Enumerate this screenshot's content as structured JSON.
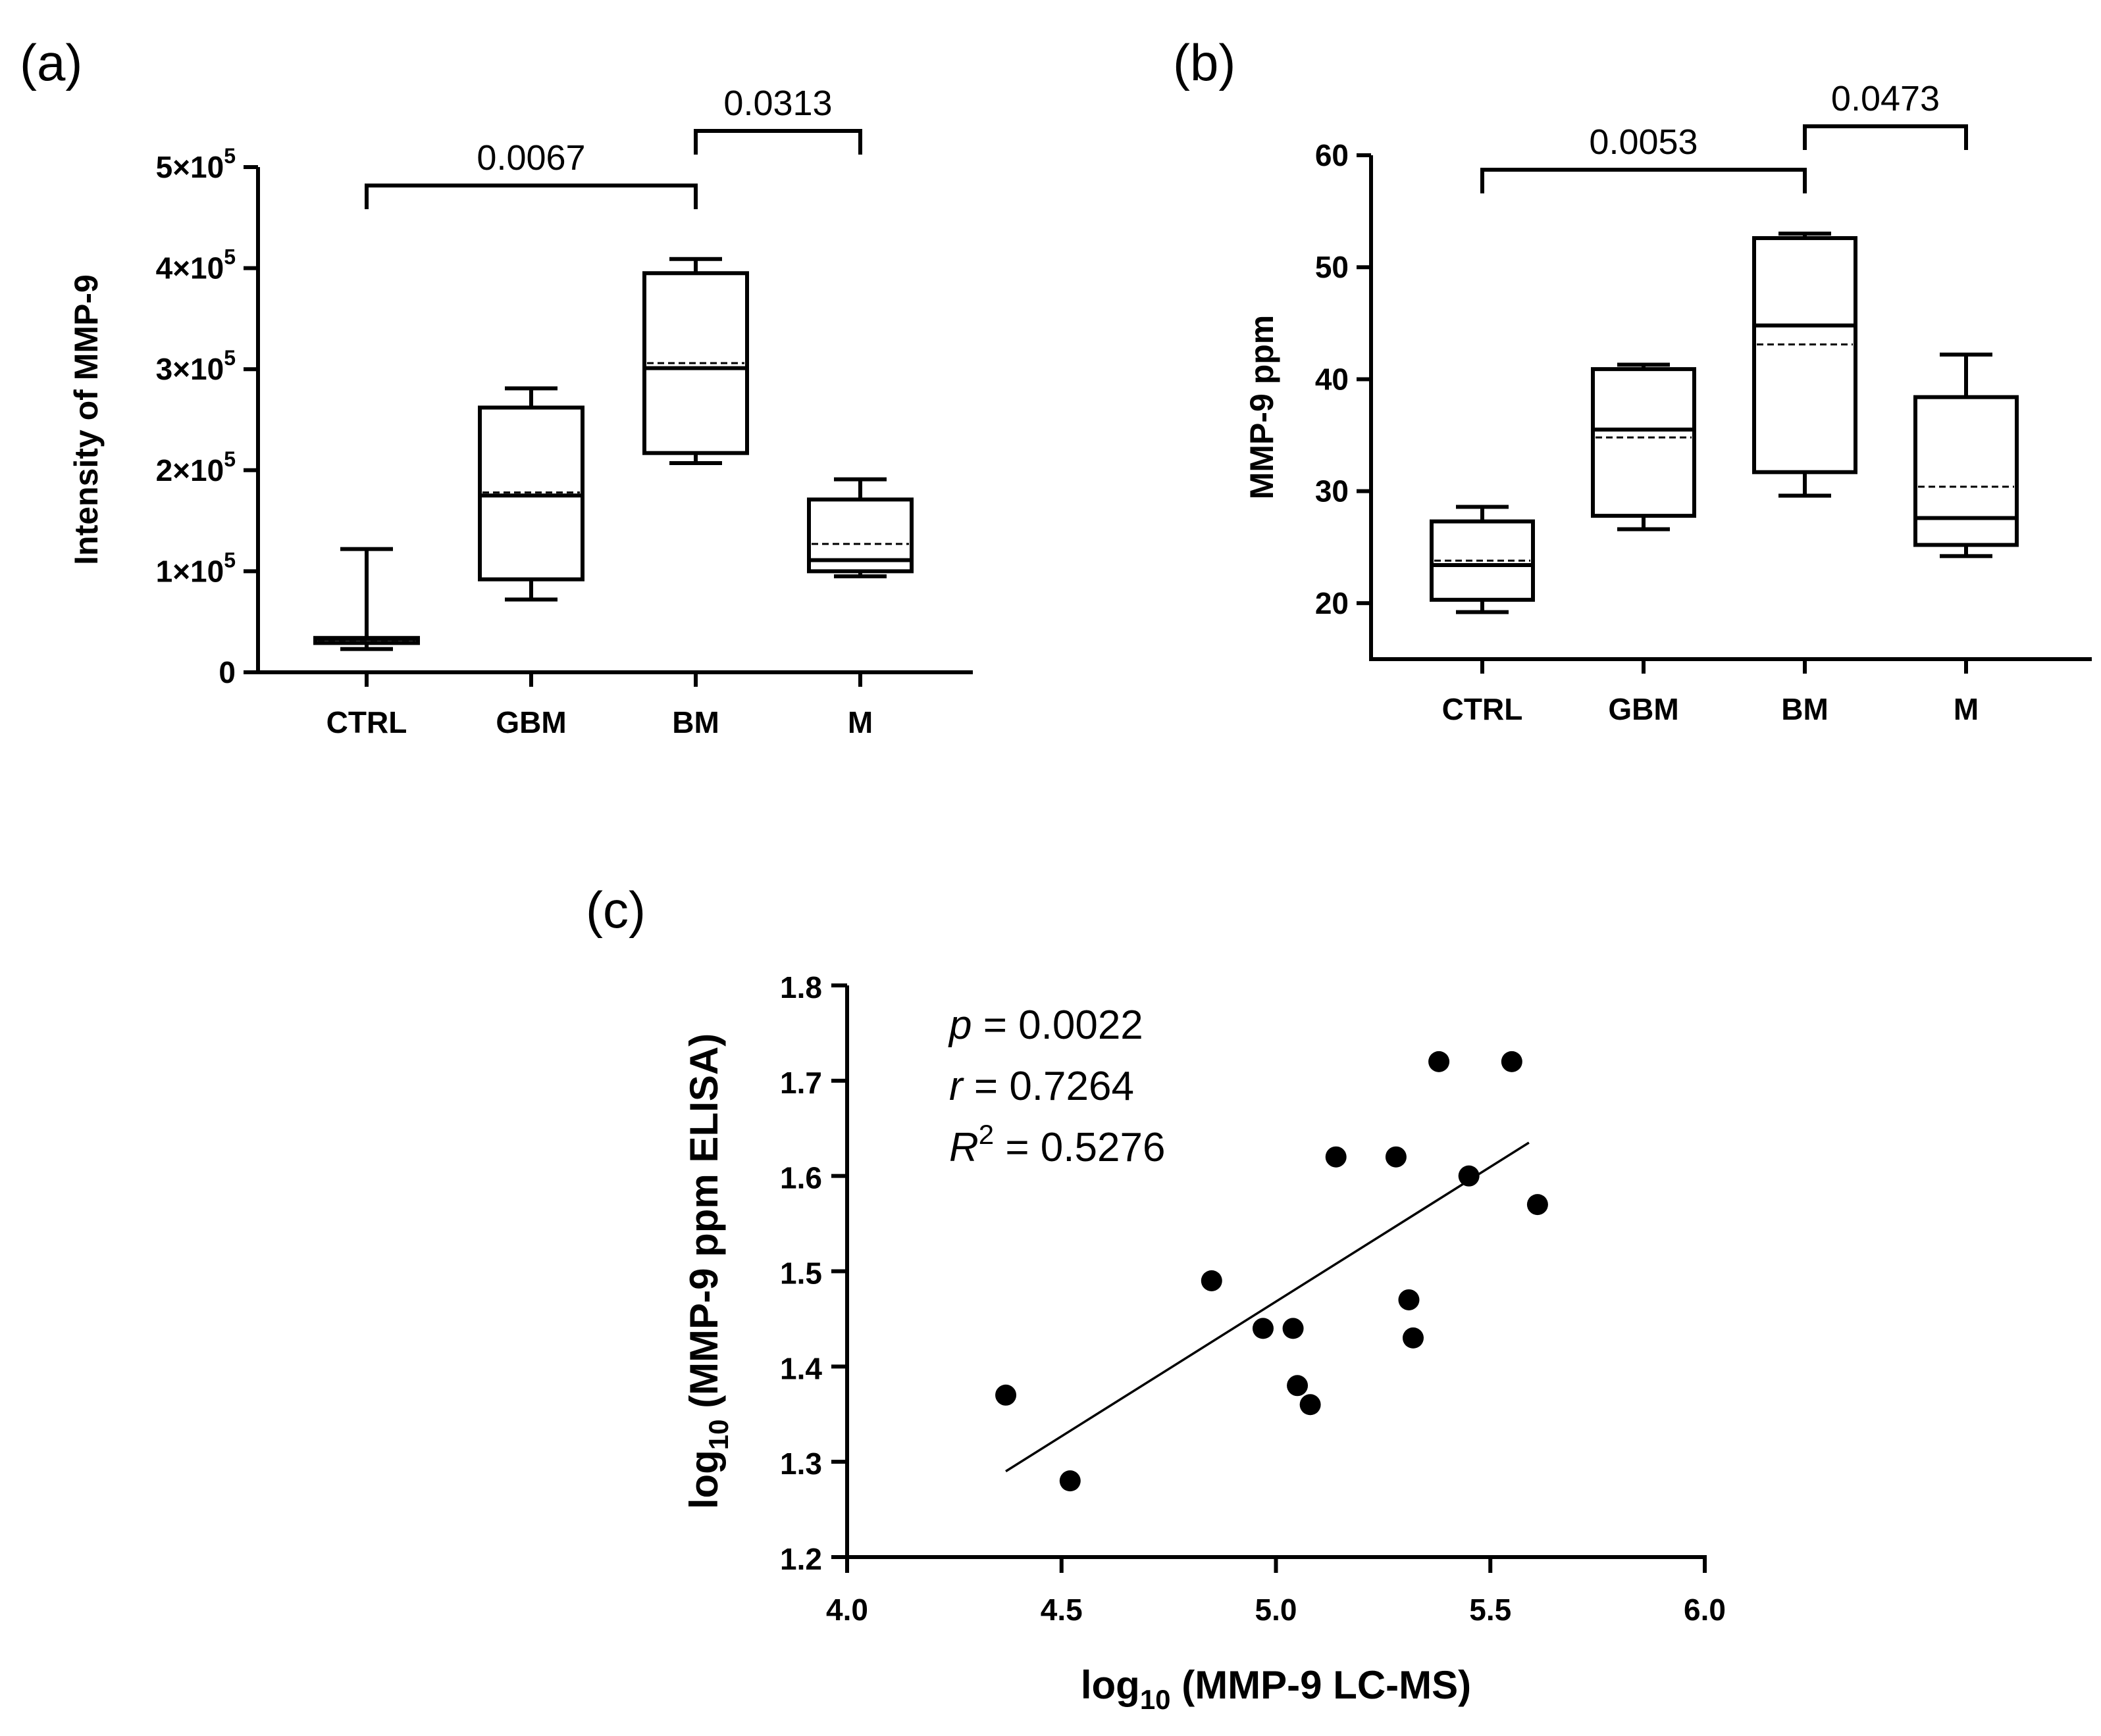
{
  "panels": {
    "a": {
      "label": "(a)"
    },
    "b": {
      "label": "(b)"
    },
    "c": {
      "label": "(c)"
    }
  },
  "chart_data": [
    {
      "id": "a",
      "type": "box",
      "ylabel": "Intensity of MMP-9",
      "ylim": [
        0,
        500000
      ],
      "yticks": [
        {
          "value": 0,
          "label": "0"
        },
        {
          "value": 100000,
          "label": "1×10",
          "exp": "5"
        },
        {
          "value": 200000,
          "label": "2×10",
          "exp": "5"
        },
        {
          "value": 300000,
          "label": "3×10",
          "exp": "5"
        },
        {
          "value": 400000,
          "label": "4×10",
          "exp": "5"
        },
        {
          "value": 500000,
          "label": "5×10",
          "exp": "5"
        }
      ],
      "categories": [
        "CTRL",
        "GBM",
        "BM",
        "M"
      ],
      "boxes": [
        {
          "min": 23000,
          "q1": 29000,
          "median": 33000,
          "q3": 34000,
          "max": 122000,
          "mean": 32000
        },
        {
          "min": 72000,
          "q1": 92000,
          "median": 175000,
          "q3": 262000,
          "max": 281000,
          "mean": 178000
        },
        {
          "min": 207000,
          "q1": 217000,
          "median": 301000,
          "q3": 395000,
          "max": 409000,
          "mean": 306000
        },
        {
          "min": 95000,
          "q1": 100000,
          "median": 111000,
          "q3": 171000,
          "max": 191000,
          "mean": 127000
        }
      ],
      "comparisons": [
        {
          "from": 0,
          "to": 2,
          "p": "0.0067",
          "level": 1
        },
        {
          "from": 2,
          "to": 3,
          "p": "0.0313",
          "level": 2
        }
      ]
    },
    {
      "id": "b",
      "type": "box",
      "ylabel": "MMP-9 ppm",
      "ylim": [
        15,
        60
      ],
      "yticks": [
        {
          "value": 20,
          "label": "20"
        },
        {
          "value": 30,
          "label": "30"
        },
        {
          "value": 40,
          "label": "40"
        },
        {
          "value": 50,
          "label": "50"
        },
        {
          "value": 60,
          "label": "60"
        }
      ],
      "categories": [
        "CTRL",
        "GBM",
        "BM",
        "M"
      ],
      "boxes": [
        {
          "min": 19.2,
          "q1": 20.3,
          "median": 23.4,
          "q3": 27.3,
          "max": 28.6,
          "mean": 23.8
        },
        {
          "min": 26.6,
          "q1": 27.8,
          "median": 35.5,
          "q3": 40.9,
          "max": 41.3,
          "mean": 34.8
        },
        {
          "min": 29.6,
          "q1": 31.7,
          "median": 44.8,
          "q3": 52.6,
          "max": 53.0,
          "mean": 43.1
        },
        {
          "min": 24.2,
          "q1": 25.2,
          "median": 27.6,
          "q3": 38.4,
          "max": 42.2,
          "mean": 30.4
        }
      ],
      "comparisons": [
        {
          "from": 0,
          "to": 2,
          "p": "0.0053",
          "level": 1
        },
        {
          "from": 2,
          "to": 3,
          "p": "0.0473",
          "level": 2
        }
      ]
    },
    {
      "id": "c",
      "type": "scatter",
      "xlabel": "log10 (MMP-9 LC-MS)",
      "xlabel_parts": [
        "log",
        "10",
        " (MMP-9 LC-MS)"
      ],
      "ylabel": "log10 (MMP-9 ppm ELISA)",
      "ylabel_parts": [
        "log",
        "10",
        " (MMP-9 ppm ELISA)"
      ],
      "xlim": [
        4.0,
        6.0
      ],
      "ylim": [
        1.2,
        1.8
      ],
      "xticks": [
        "4.0",
        "4.5",
        "5.0",
        "5.5",
        "6.0"
      ],
      "yticks": [
        "1.2",
        "1.3",
        "1.4",
        "1.5",
        "1.6",
        "1.7",
        "1.8"
      ],
      "points": [
        {
          "x": 4.37,
          "y": 1.37
        },
        {
          "x": 4.52,
          "y": 1.28
        },
        {
          "x": 4.85,
          "y": 1.49
        },
        {
          "x": 4.97,
          "y": 1.44
        },
        {
          "x": 5.04,
          "y": 1.44
        },
        {
          "x": 5.05,
          "y": 1.38
        },
        {
          "x": 5.08,
          "y": 1.36
        },
        {
          "x": 5.14,
          "y": 1.62
        },
        {
          "x": 5.28,
          "y": 1.62
        },
        {
          "x": 5.31,
          "y": 1.47
        },
        {
          "x": 5.32,
          "y": 1.43
        },
        {
          "x": 5.38,
          "y": 1.72
        },
        {
          "x": 5.45,
          "y": 1.6
        },
        {
          "x": 5.55,
          "y": 1.72
        },
        {
          "x": 5.61,
          "y": 1.57
        }
      ],
      "fit": {
        "x1": 4.37,
        "y1": 1.29,
        "x2": 5.59,
        "y2": 1.635
      },
      "stats": [
        {
          "sym": "p",
          "sup": "",
          "text": " = 0.0022"
        },
        {
          "sym": "r",
          "sup": "",
          "text": " = 0.7264"
        },
        {
          "sym": "R",
          "sup": "2",
          "text": " = 0.5276"
        }
      ]
    }
  ]
}
